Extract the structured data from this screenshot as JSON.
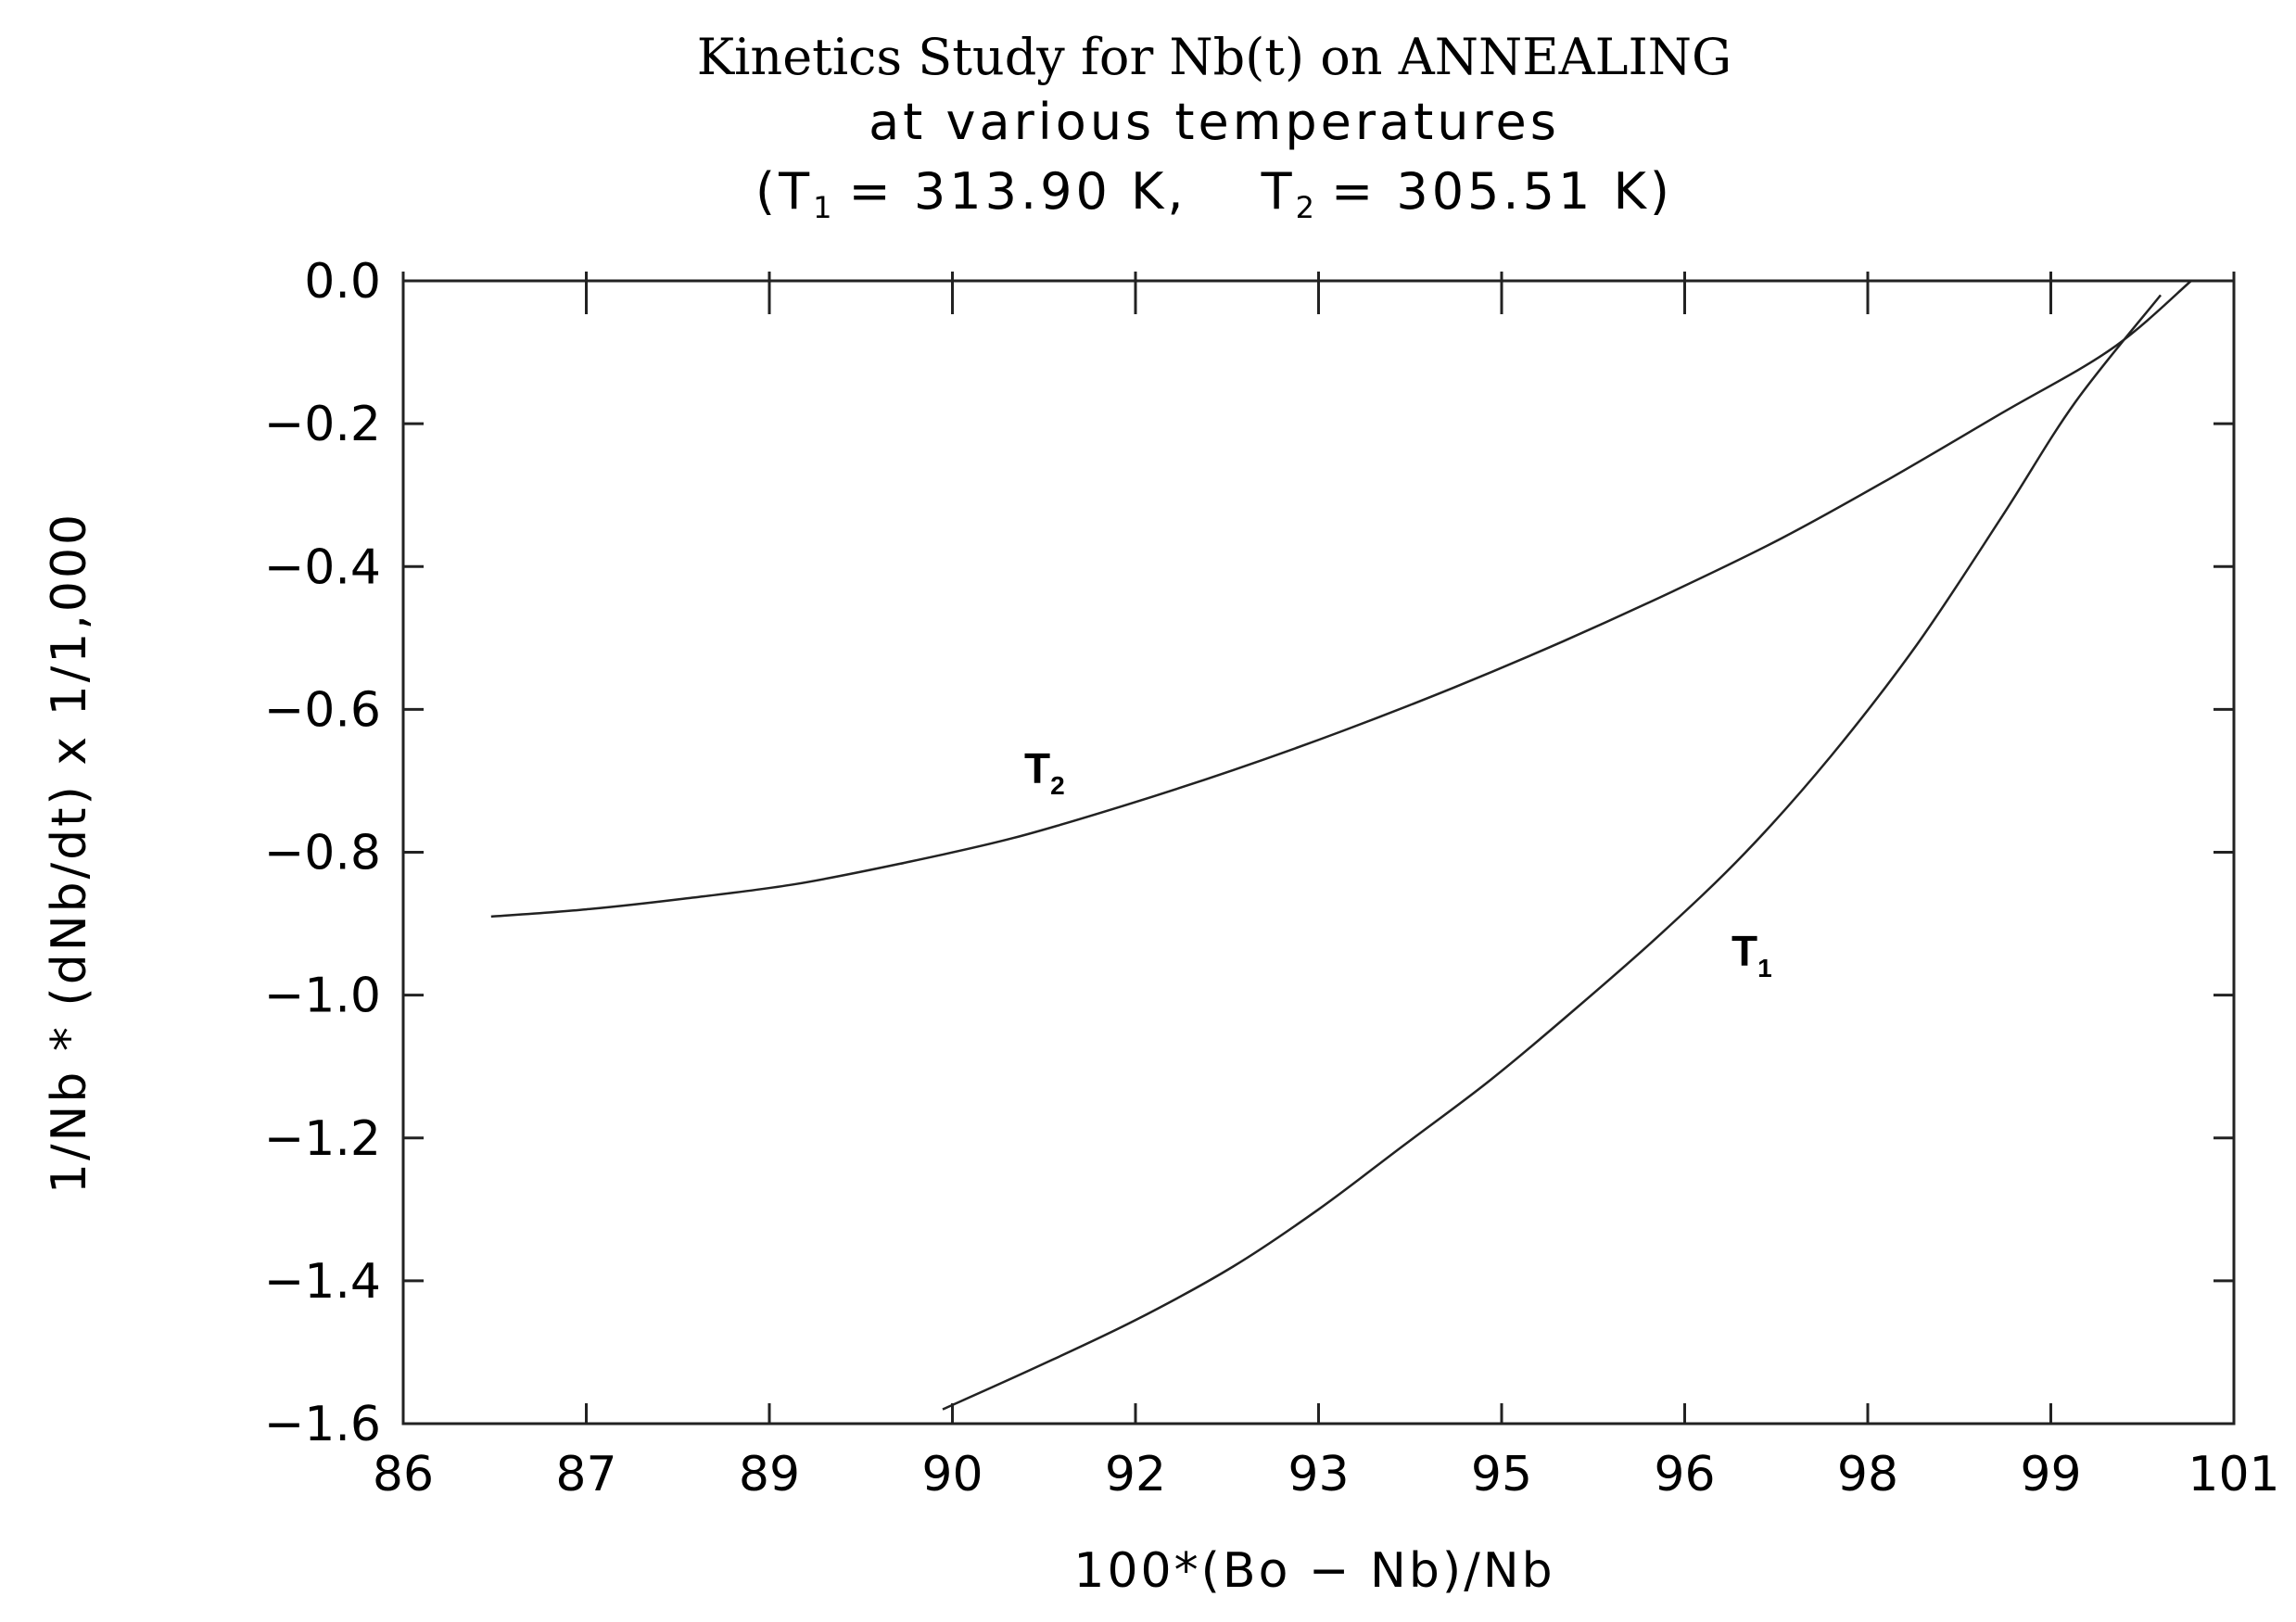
{
  "chart_data": {
    "type": "line",
    "title": "Kinetics Study for Nb(t) on ANNEALING",
    "subtitle": "at various temperatures",
    "subtitle2": {
      "open": "(T",
      "t1_sub": "1",
      "t1_value": "= 313.90 K,",
      "t2_letter": "T",
      "t2_sub": "2",
      "t2_value": "= 305.51 K)"
    },
    "xlabel": "100*(Bo − Nb)/Nb",
    "ylabel": "1/Nb * (dNb/dt) x 1/1,000",
    "xtick_labels": [
      "86",
      "87",
      "89",
      "90",
      "92",
      "93",
      "95",
      "96",
      "98",
      "99",
      "101"
    ],
    "ytick_labels": [
      "0.0",
      "−0.2",
      "−0.4",
      "−0.6",
      "−0.8",
      "−1.0",
      "−1.2",
      "−1.4",
      "−1.6"
    ],
    "yticks": [
      0.0,
      -0.2,
      -0.4,
      -0.6,
      -0.8,
      -1.0,
      -1.2,
      -1.4,
      -1.6
    ],
    "xlim": [
      86,
      101
    ],
    "ylim": [
      -1.6,
      0.0
    ],
    "grid": false,
    "series": [
      {
        "label": "T",
        "sub": "2",
        "color": "#222222",
        "x": [
          86.72,
          87.5,
          88.3,
          89.2,
          90.1,
          91.0,
          91.9,
          92.8,
          93.7,
          94.6,
          95.5,
          96.4,
          97.3,
          98.2,
          99.1,
          100.0,
          100.65
        ],
        "y": [
          -0.89,
          -0.88,
          -0.865,
          -0.845,
          -0.815,
          -0.78,
          -0.735,
          -0.685,
          -0.63,
          -0.57,
          -0.505,
          -0.435,
          -0.36,
          -0.275,
          -0.185,
          -0.095,
          0.0
        ]
      },
      {
        "label": "T",
        "sub": "1",
        "color": "#222222",
        "x": [
          90.42,
          91.2,
          92.0,
          92.8,
          93.5,
          94.2,
          94.9,
          95.6,
          96.3,
          97.0,
          97.7,
          98.4,
          99.1,
          99.7,
          100.4
        ],
        "y": [
          -1.58,
          -1.52,
          -1.455,
          -1.38,
          -1.3,
          -1.21,
          -1.12,
          -1.02,
          -0.915,
          -0.8,
          -0.665,
          -0.51,
          -0.33,
          -0.17,
          -0.02
        ]
      }
    ]
  }
}
